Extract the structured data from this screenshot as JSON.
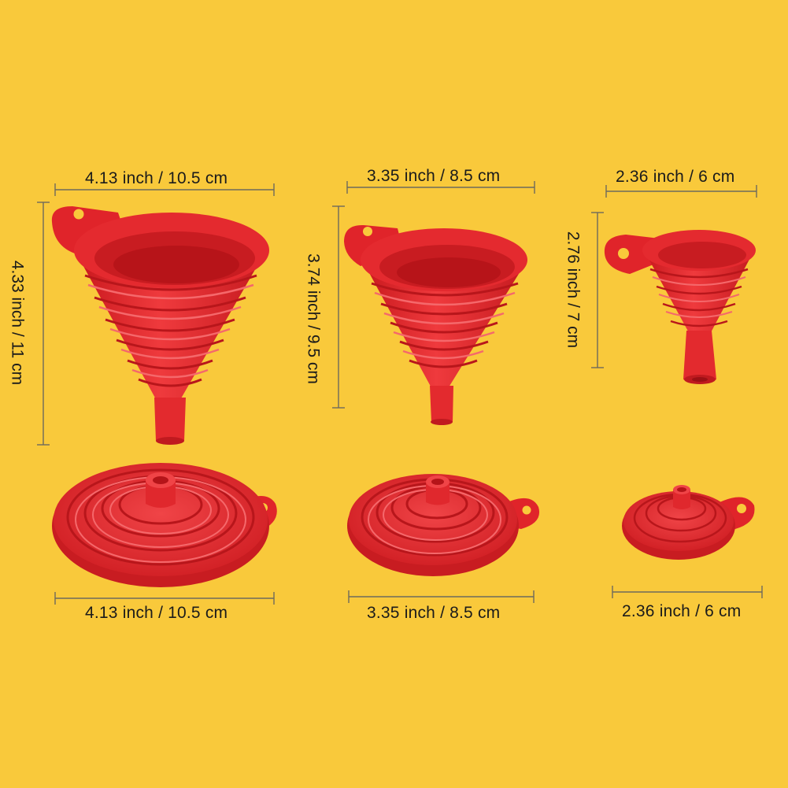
{
  "colors": {
    "background": "#f9c93b",
    "funnel_red": "#e8262b",
    "funnel_light": "#f2484b",
    "funnel_dark": "#b81318",
    "dimension_line": "#6e6a5c"
  },
  "large": {
    "open_width_label": "4.13 inch / 10.5 cm",
    "height_label": "4.33 inch / 11 cm",
    "folded_width_label": "4.13 inch / 10.5 cm"
  },
  "medium": {
    "open_width_label": "3.35 inch / 8.5 cm",
    "height_label": "3.74 inch / 9.5 cm",
    "folded_width_label": "3.35 inch / 8.5 cm"
  },
  "small": {
    "open_width_label": "2.36 inch / 6 cm",
    "height_label": "2.76 inch / 7 cm",
    "folded_width_label": "2.36 inch / 6 cm"
  }
}
